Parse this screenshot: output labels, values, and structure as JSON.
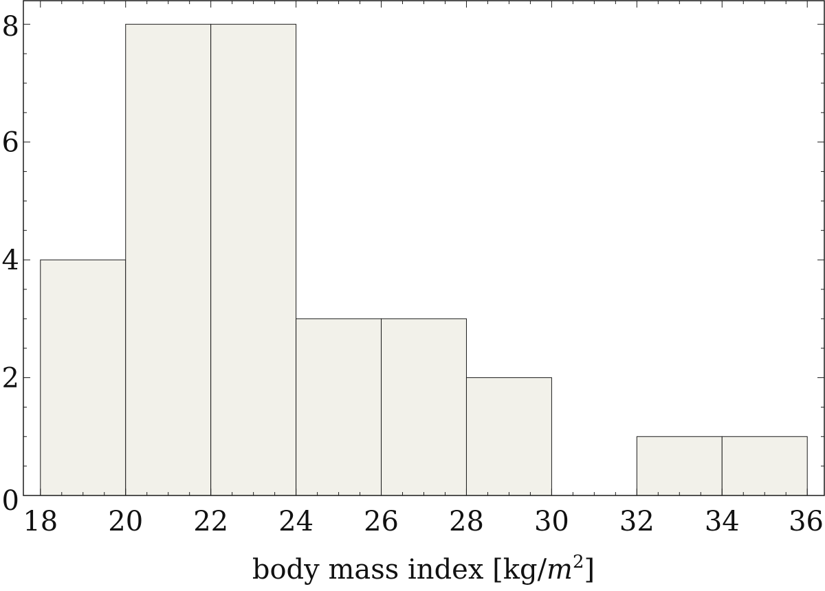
{
  "chart_data": {
    "type": "bar",
    "bin_edges": [
      18,
      20,
      22,
      24,
      26,
      28,
      30,
      32,
      34,
      36
    ],
    "values": [
      4,
      8,
      8,
      3,
      3,
      2,
      0,
      1,
      1
    ],
    "title": "",
    "xlabel": "body mass index [kg/m²]",
    "xlabel_parts": {
      "text": "body mass index [kg/",
      "italic": "m",
      "sup": "2",
      "close": "]"
    },
    "ylabel": "",
    "xlim": [
      17.6,
      36.4
    ],
    "ylim": [
      0,
      8.4
    ],
    "x_ticks": [
      18,
      20,
      22,
      24,
      26,
      28,
      30,
      32,
      34,
      36
    ],
    "y_ticks": [
      0,
      2,
      4,
      6,
      8
    ],
    "x_tick_labels": [
      "18",
      "20",
      "22",
      "24",
      "26",
      "28",
      "30",
      "32",
      "34",
      "36"
    ],
    "y_tick_labels": [
      "0",
      "2",
      "4",
      "6",
      "8"
    ],
    "grid": false,
    "legend": "none",
    "colors": {
      "bar_fill": "#f2f1ea",
      "bar_stroke": "#1a1a1a",
      "frame": "#1a1a1a"
    }
  }
}
